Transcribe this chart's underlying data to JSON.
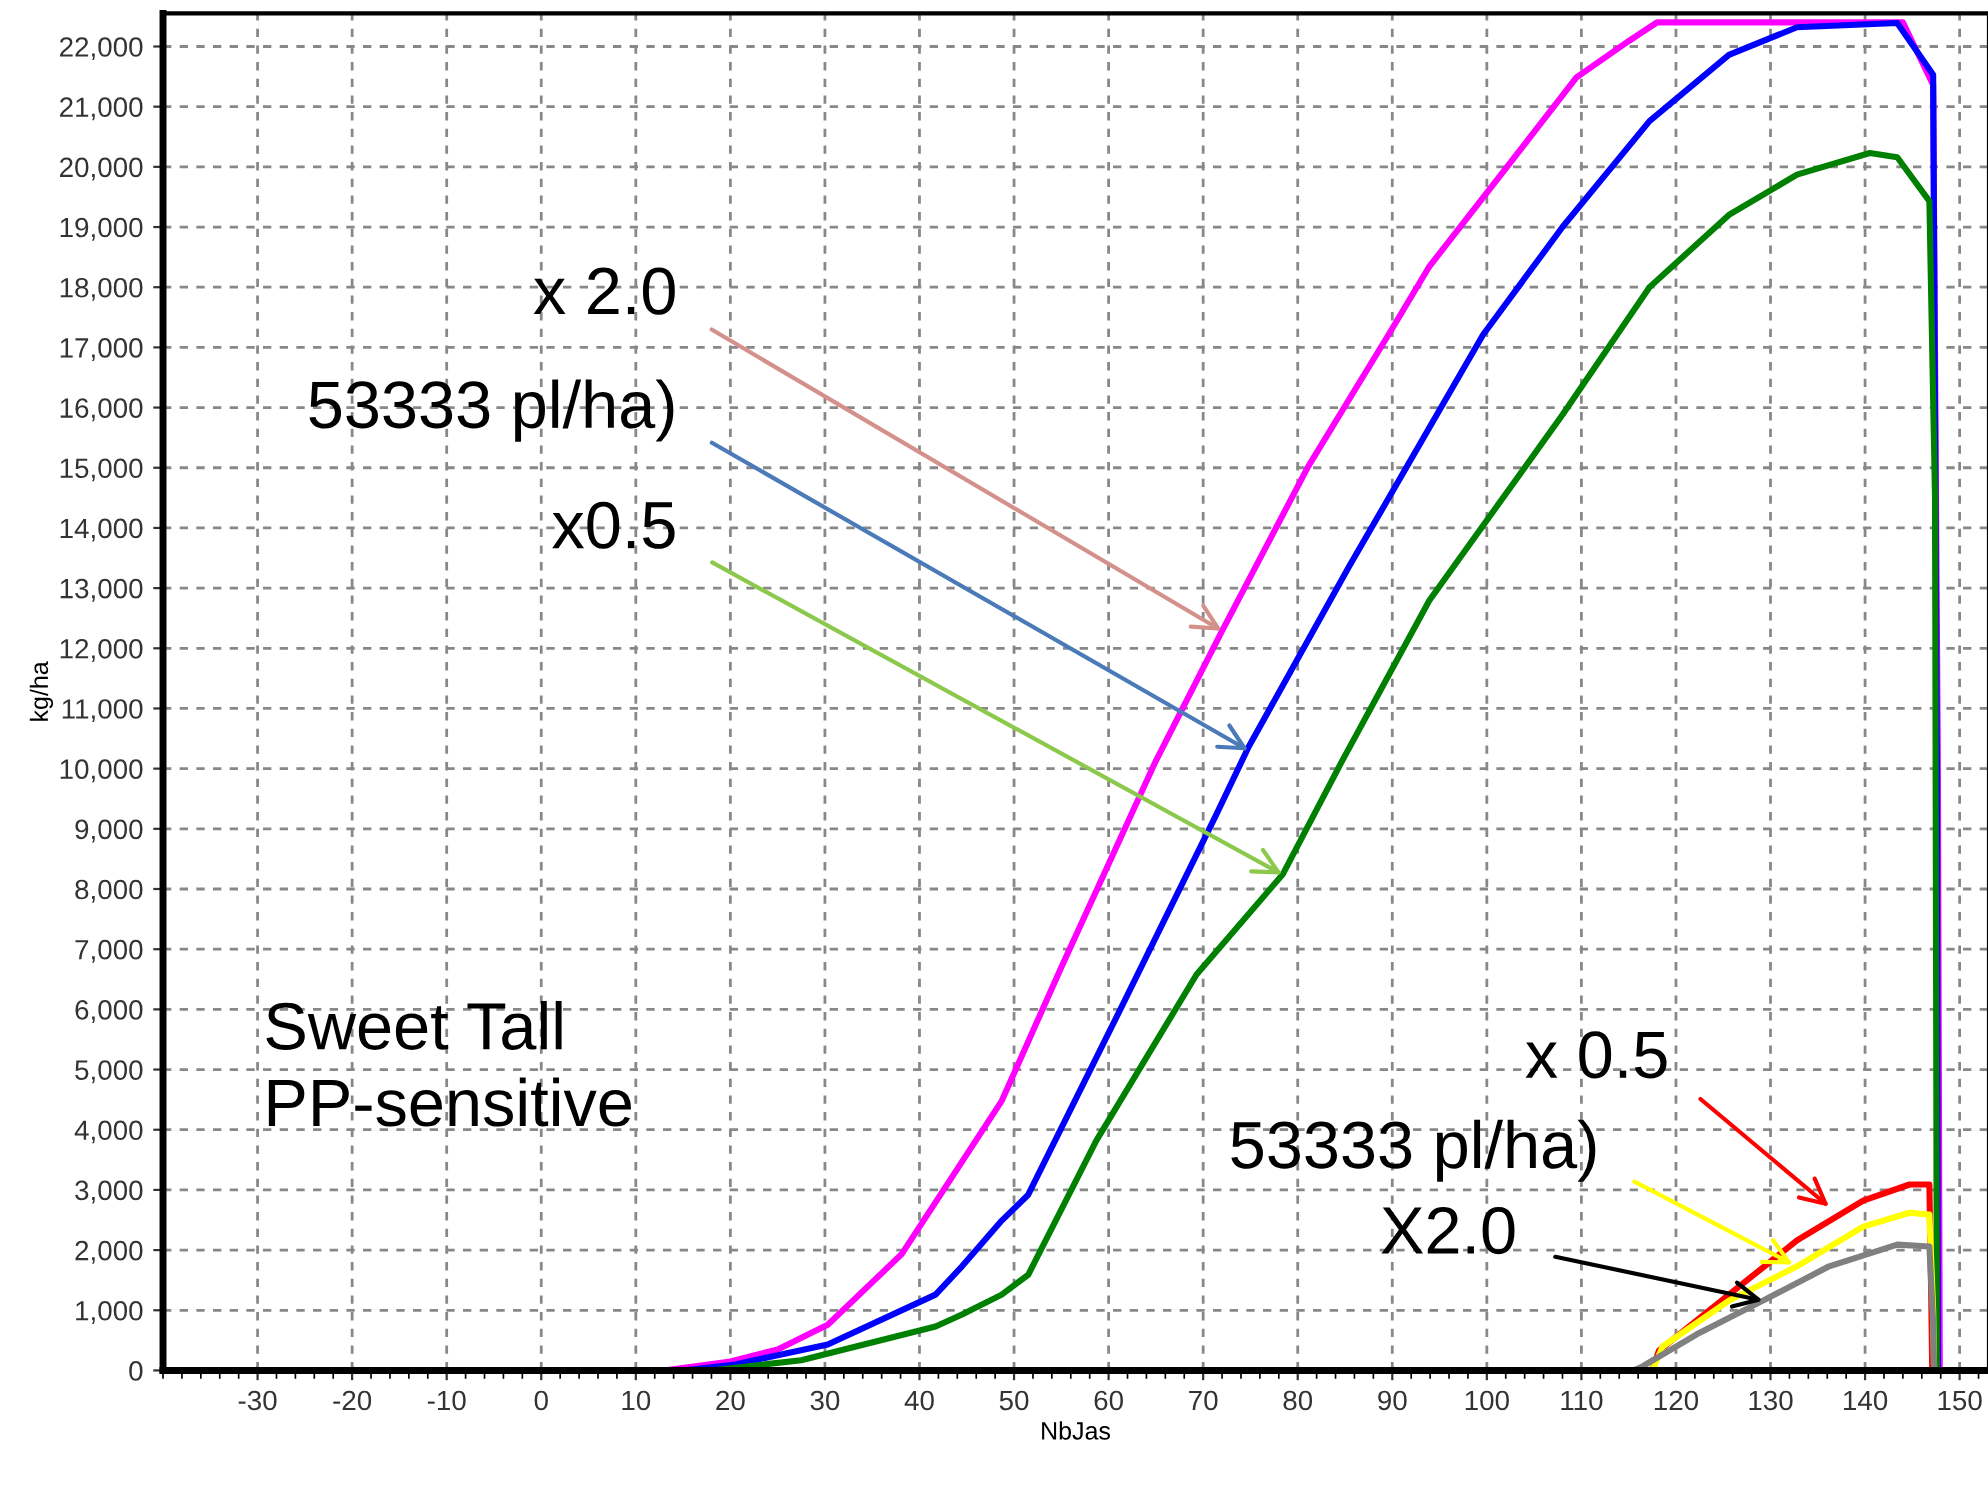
{
  "chart_data": {
    "type": "line",
    "xlabel": "NbJas",
    "ylabel": "kg/ha",
    "xlim": [
      -40,
      153
    ],
    "ylim": [
      0,
      22550
    ],
    "xticks": [
      -30,
      -20,
      -10,
      0,
      10,
      20,
      30,
      40,
      50,
      60,
      70,
      80,
      90,
      100,
      110,
      120,
      130,
      140,
      150
    ],
    "yticks": [
      0,
      {
        "value": 1000,
        "label": "1,000"
      },
      {
        "value": 2000,
        "label": "2,000"
      },
      {
        "value": 3000,
        "label": "3,000"
      },
      {
        "value": 4000,
        "label": "4,000"
      },
      {
        "value": 5000,
        "label": "5,000"
      },
      {
        "value": 6000,
        "label": "6,000"
      },
      {
        "value": 7000,
        "label": "7,000"
      },
      {
        "value": 8000,
        "label": "8,000"
      },
      {
        "value": 9000,
        "label": "9,000"
      },
      {
        "value": 10000,
        "label": "10,000"
      },
      {
        "value": 11000,
        "label": "11,000"
      },
      {
        "value": 12000,
        "label": "12,000"
      },
      {
        "value": 13000,
        "label": "13,000"
      },
      {
        "value": 14000,
        "label": "14,000"
      },
      {
        "value": 15000,
        "label": "15,000"
      },
      {
        "value": 16000,
        "label": "16,000"
      },
      {
        "value": 17000,
        "label": "17,000"
      },
      {
        "value": 18000,
        "label": "18,000"
      },
      {
        "value": 19000,
        "label": "19,000"
      },
      {
        "value": 20000,
        "label": "20,000"
      },
      {
        "value": 21000,
        "label": "21,000"
      },
      {
        "value": 22000,
        "label": "22,000"
      }
    ],
    "grid": true,
    "marker": "none",
    "line_style": "solid",
    "series": [
      {
        "color": "#ff00ff",
        "x": [
          13,
          20,
          25,
          30.3,
          38.1,
          48.7,
          55,
          65,
          72,
          81.1,
          89.6,
          93.9,
          101,
          109.5,
          115,
          118,
          125,
          135,
          144,
          147.2,
          147.7,
          147.9
        ],
        "values": [
          0,
          150,
          350,
          760,
          1930,
          4480,
          6700,
          10130,
          12290,
          15020,
          17210,
          18340,
          19770,
          21490,
          22090,
          22400,
          22400,
          22400,
          22400,
          21360,
          10000,
          0
        ]
      },
      {
        "color": "#0000ff",
        "x": [
          15,
          20.5,
          30.3,
          41.7,
          44.5,
          48.7,
          51.5,
          61.4,
          71.4,
          74.8,
          85.4,
          99.6,
          108,
          117.2,
          125.6,
          132.8,
          143.4,
          147.2,
          147.6,
          147.7
        ],
        "values": [
          0,
          100,
          430,
          1260,
          1730,
          2490,
          2920,
          6050,
          9240,
          10360,
          13350,
          17210,
          19000,
          20760,
          21860,
          22320,
          22390,
          21530,
          10000,
          0
        ]
      },
      {
        "color": "#008000",
        "x": [
          18,
          27.5,
          41.7,
          44.5,
          48.7,
          51.5,
          58.7,
          69.3,
          78.4,
          84.7,
          93.9,
          108,
          117.2,
          125.6,
          132.8,
          140.5,
          143.4,
          146.8,
          147.4,
          147.6
        ],
        "values": [
          0,
          170,
          730,
          930,
          1260,
          1590,
          3820,
          6580,
          8240,
          10130,
          12790,
          15880,
          18000,
          19200,
          19870,
          20230,
          20160,
          19430,
          14500,
          0
        ]
      },
      {
        "color": "#ff0000",
        "x": [
          117.5,
          118.2,
          125.6,
          132.8,
          139.8,
          144.7,
          146.8,
          147,
          147.1
        ],
        "values": [
          0,
          330,
          1260,
          2160,
          2820,
          3090,
          3090,
          1200,
          0
        ]
      },
      {
        "color": "#ffff00",
        "x": [
          117.5,
          118.6,
          125.6,
          132.8,
          139.8,
          144.7,
          146.8,
          147.2,
          147.3
        ],
        "values": [
          0,
          400,
          1160,
          1730,
          2390,
          2620,
          2590,
          1000,
          0
        ]
      },
      {
        "color": "#808080",
        "x": [
          115.5,
          116.5,
          122.2,
          129.2,
          136.2,
          143.4,
          146.8,
          147.2,
          147.3
        ],
        "values": [
          0,
          70,
          600,
          1160,
          1730,
          2090,
          2060,
          800,
          0
        ]
      }
    ],
    "annotations": [
      {
        "text": "x 2.0",
        "x": 72,
        "y": 12290
      },
      {
        "text": "53333 pl/ha)",
        "x": 74.8,
        "y": 10300
      },
      {
        "text": "x0.5",
        "x": 78.4,
        "y": 8240
      },
      {
        "text": "x 0.5",
        "x": 136.2,
        "y": 2720
      },
      {
        "text": "53333 pl/ha)",
        "x": 132.4,
        "y": 1760
      },
      {
        "text": "X2.0",
        "x": 129.2,
        "y": 1160
      },
      "Sweet Tall\nPP-sensitive"
    ]
  }
}
